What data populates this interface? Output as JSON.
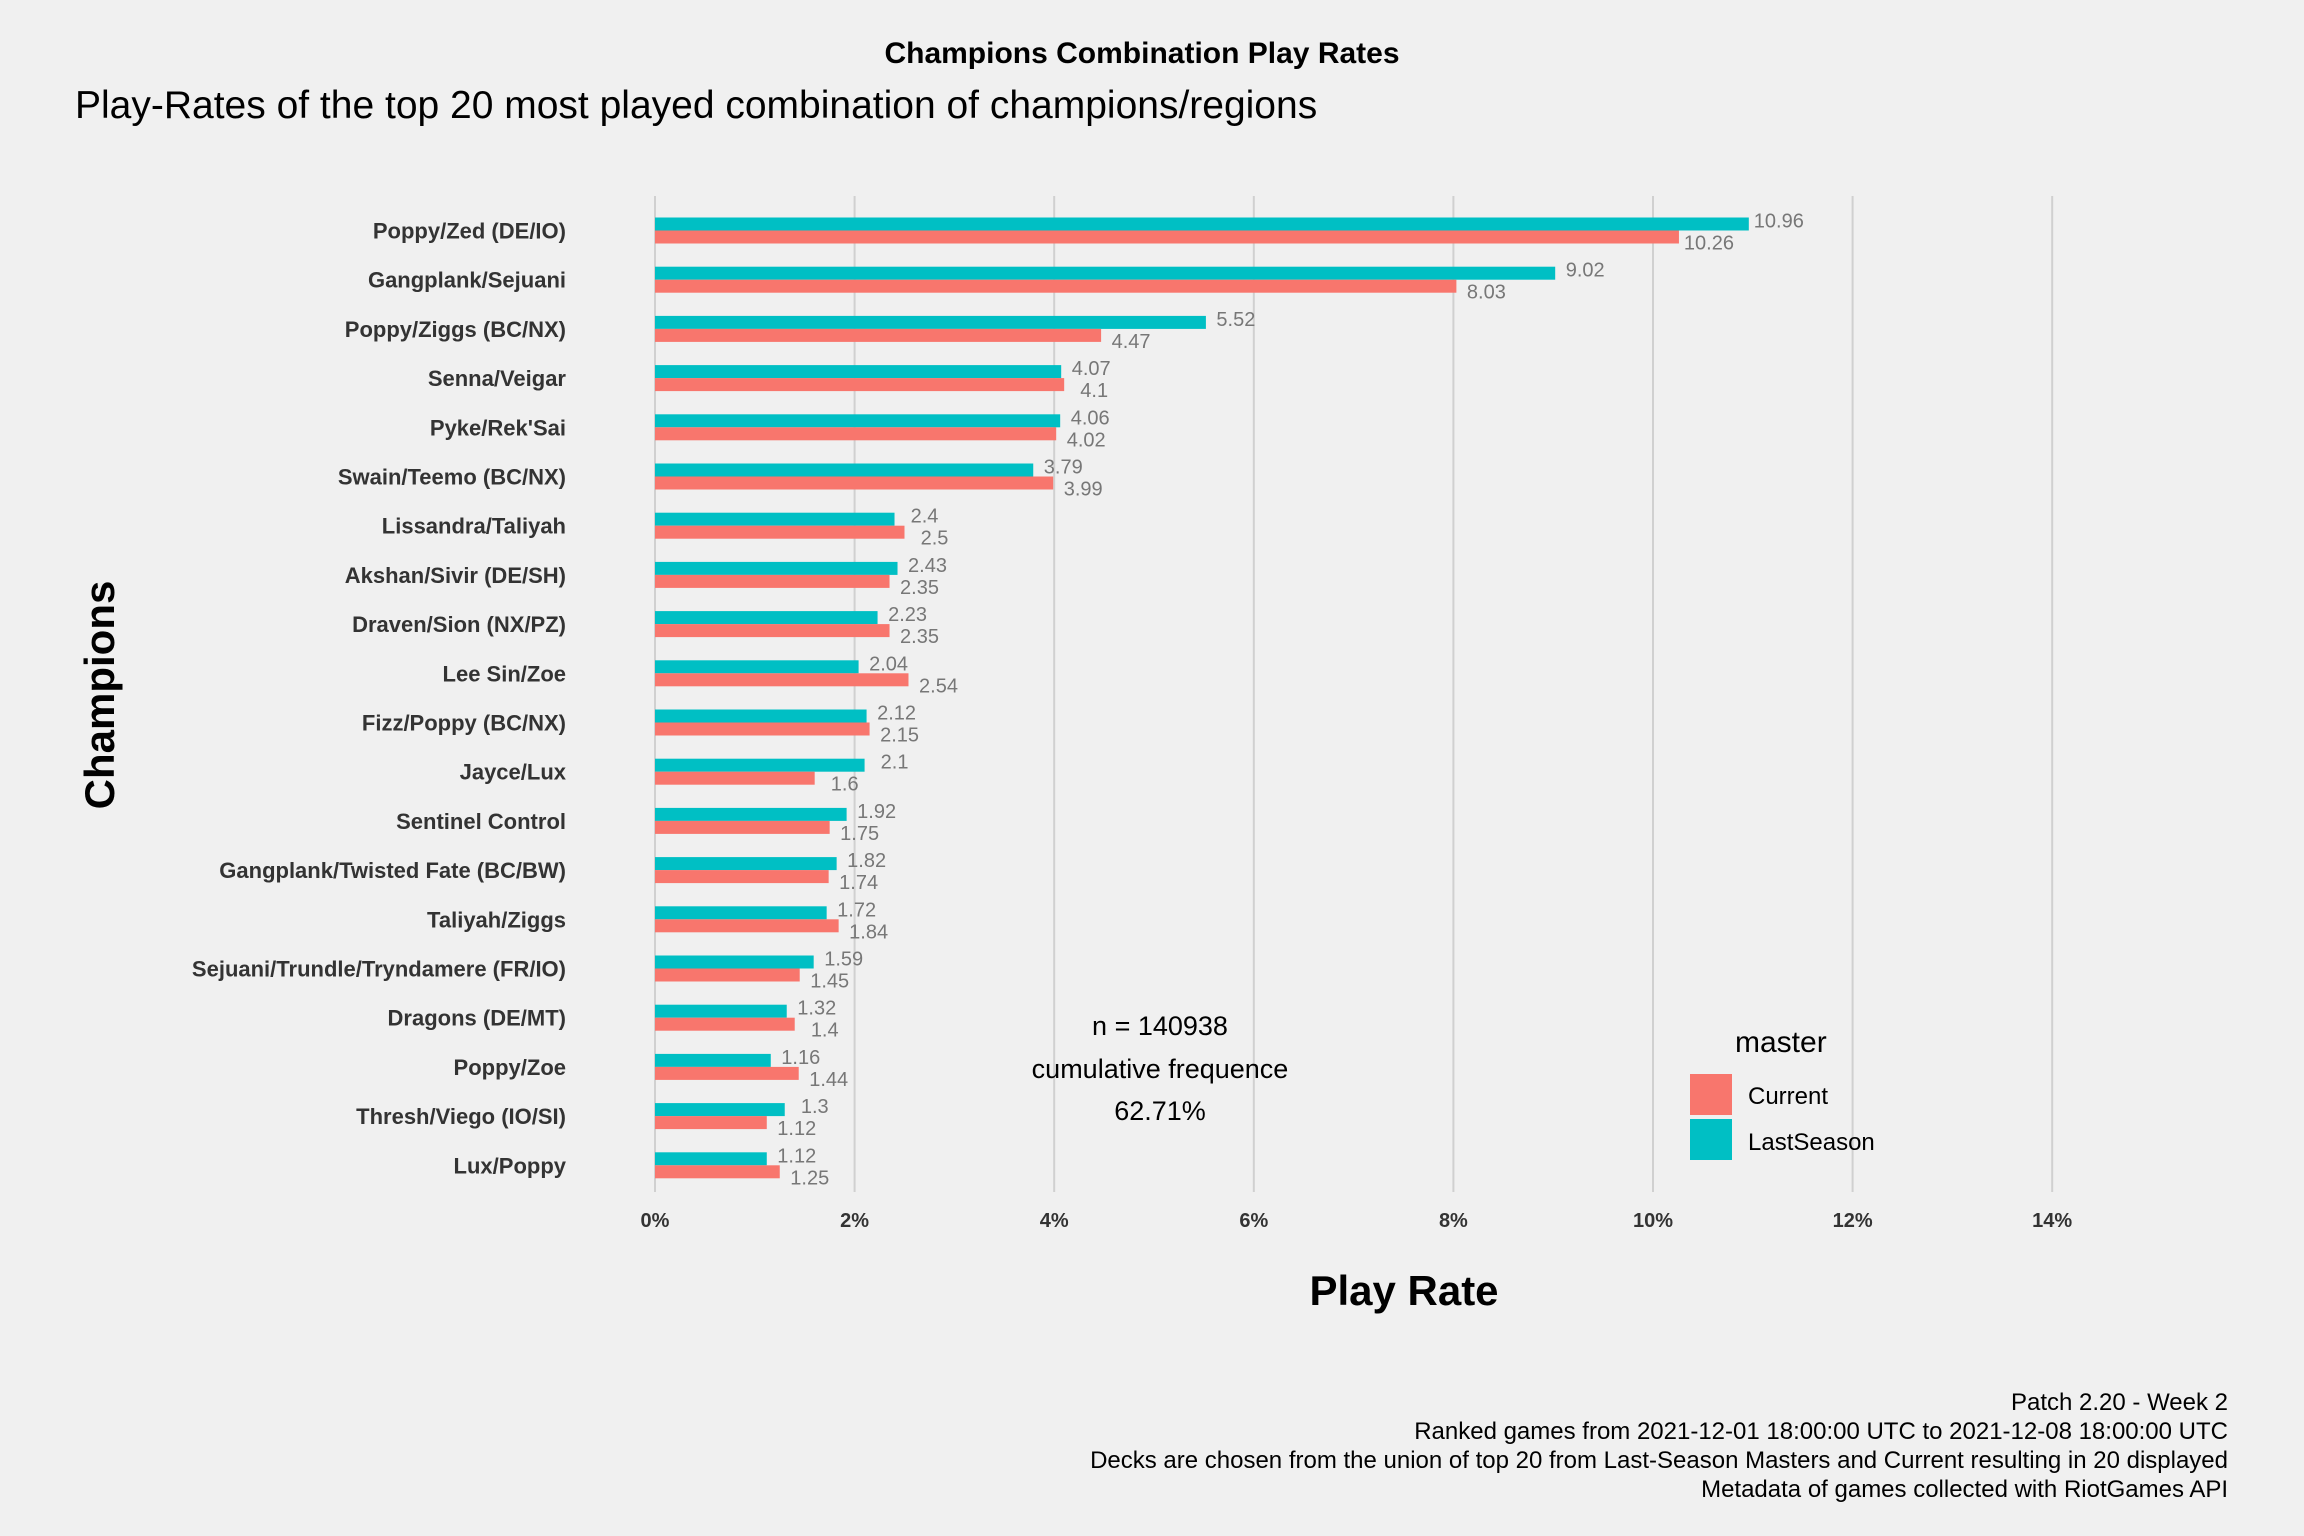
{
  "chart_data": {
    "type": "bar",
    "orientation": "horizontal",
    "title": "Champions Combination Play Rates",
    "subtitle": "Play-Rates of the top 20 most played combination of champions/regions",
    "xlabel": "Play Rate",
    "ylabel": "Champions",
    "xlim": [
      0,
      14
    ],
    "x_ticks": [
      "0%",
      "2%",
      "4%",
      "6%",
      "8%",
      "10%",
      "12%",
      "14%"
    ],
    "grid": "vertical major",
    "categories": [
      "Poppy/Zed (DE/IO)",
      "Gangplank/Sejuani",
      "Poppy/Ziggs (BC/NX)",
      "Senna/Veigar",
      "Pyke/Rek'Sai",
      "Swain/Teemo (BC/NX)",
      "Lissandra/Taliyah",
      "Akshan/Sivir (DE/SH)",
      "Draven/Sion (NX/PZ)",
      "Lee Sin/Zoe",
      "Fizz/Poppy (BC/NX)",
      "Jayce/Lux",
      "Sentinel Control",
      "Gangplank/Twisted Fate (BC/BW)",
      "Taliyah/Ziggs",
      "Sejuani/Trundle/Tryndamere (FR/IO)",
      "Dragons (DE/MT)",
      "Poppy/Zoe",
      "Thresh/Viego (IO/SI)",
      "Lux/Poppy"
    ],
    "series": [
      {
        "name": "LastSeason",
        "color": "#00bfc4",
        "values": [
          10.96,
          9.02,
          5.52,
          4.07,
          4.06,
          3.79,
          2.4,
          2.43,
          2.23,
          2.04,
          2.12,
          2.1,
          1.92,
          1.82,
          1.72,
          1.59,
          1.32,
          1.16,
          1.3,
          1.12
        ],
        "labels": [
          "10.96",
          "9.02",
          "5.52",
          "4.07",
          "4.06",
          "3.79",
          "2.4",
          "2.43",
          "2.23",
          "2.04",
          "2.12",
          "2.1",
          "1.92",
          "1.82",
          "1.72",
          "1.59",
          "1.32",
          "1.16",
          "1.3",
          "1.12"
        ]
      },
      {
        "name": "Current",
        "color": "#f8766d",
        "values": [
          10.26,
          8.03,
          4.47,
          4.1,
          4.02,
          3.99,
          2.5,
          2.35,
          2.35,
          2.54,
          2.15,
          1.6,
          1.75,
          1.74,
          1.84,
          1.45,
          1.4,
          1.44,
          1.12,
          1.25
        ],
        "labels": [
          "10.26",
          "8.03",
          "4.47",
          "4.1",
          "4.02",
          "3.99",
          "2.5",
          "2.35",
          "2.35",
          "2.54",
          "2.15",
          "1.6",
          "1.75",
          "1.74",
          "1.84",
          "1.45",
          "1.4",
          "1.44",
          "1.12",
          "1.25"
        ]
      }
    ],
    "legend": {
      "title": "master",
      "position": "bottom-right",
      "items": [
        {
          "label": "Current",
          "color": "#f8766d"
        },
        {
          "label": "LastSeason",
          "color": "#00bfc4"
        }
      ]
    },
    "annotation": [
      "n = 140938",
      "cumulative frequence",
      "62.71%"
    ],
    "caption": [
      "Patch 2.20 - Week 2",
      "Ranked games from 2021-12-01 18:00:00 UTC to 2021-12-08 18:00:00 UTC",
      "Decks are chosen from the union of top 20 from Last-Season Masters and Current resulting in 20 displayed",
      "Metadata of games collected with RiotGames API"
    ]
  }
}
